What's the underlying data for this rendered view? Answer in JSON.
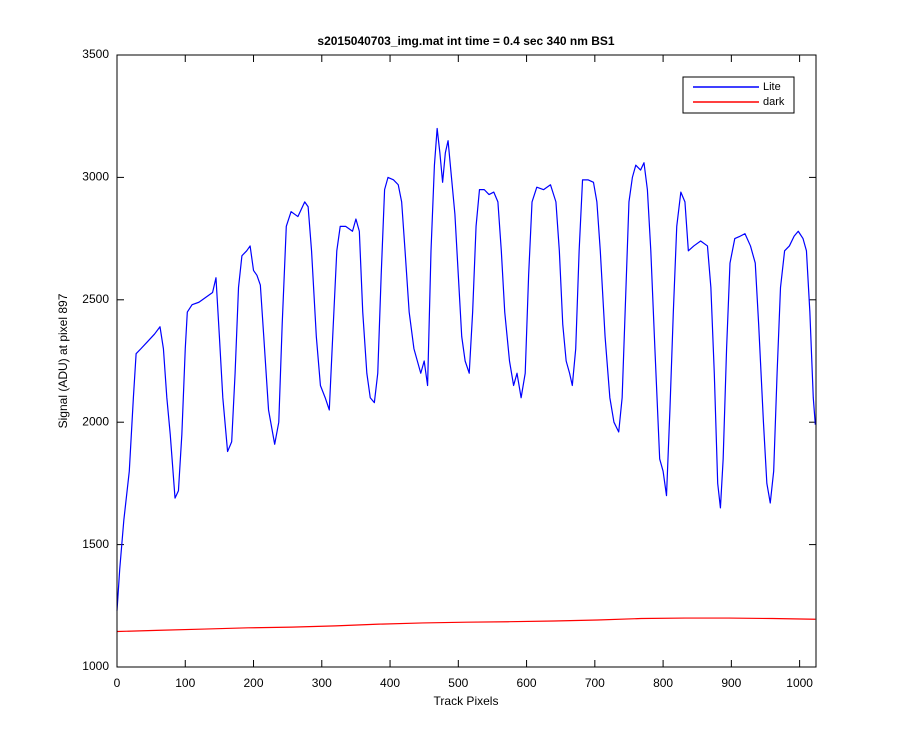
{
  "chart_data": {
    "type": "line",
    "title": "s2015040703_img.mat int time = 0.4 sec  340 nm BS1",
    "xlabel": "Track Pixels",
    "ylabel": "Signal (ADU) at pixel 897",
    "xlim": [
      0,
      1024
    ],
    "ylim": [
      1000,
      3500
    ],
    "xticks": [
      0,
      100,
      200,
      300,
      400,
      500,
      600,
      700,
      800,
      900,
      1000
    ],
    "yticks": [
      1000,
      1500,
      2000,
      2500,
      3000,
      3500
    ],
    "grid": false,
    "legend": "upper right",
    "series": [
      {
        "name": "Lite",
        "color": "#0000ff",
        "x": [
          0,
          4,
          10,
          18,
          24,
          28,
          35,
          45,
          55,
          63,
          68,
          73,
          78,
          85,
          90,
          95,
          100,
          103,
          110,
          120,
          130,
          140,
          145,
          150,
          155,
          162,
          168,
          173,
          178,
          183,
          190,
          195,
          200,
          205,
          210,
          215,
          222,
          231,
          237,
          242,
          248,
          255,
          265,
          275,
          280,
          285,
          292,
          298,
          305,
          311,
          316,
          322,
          327,
          335,
          345,
          350,
          355,
          360,
          366,
          371,
          377,
          382,
          387,
          392,
          397,
          405,
          412,
          417,
          422,
          428,
          435,
          440,
          445,
          450,
          455,
          460,
          465,
          469,
          473,
          477,
          481,
          485,
          490,
          495,
          500,
          505,
          510,
          516,
          521,
          526,
          531,
          538,
          545,
          552,
          558,
          563,
          568,
          575,
          581,
          586,
          592,
          598,
          603,
          608,
          615,
          625,
          635,
          643,
          648,
          653,
          658,
          663,
          667,
          672,
          677,
          682,
          690,
          698,
          703,
          708,
          715,
          722,
          728,
          735,
          740,
          745,
          750,
          755,
          760,
          767,
          772,
          777,
          782,
          788,
          795,
          800,
          805,
          810,
          815,
          820,
          826,
          832,
          837,
          845,
          855,
          865,
          870,
          875,
          880,
          884,
          888,
          893,
          898,
          905,
          913,
          920,
          928,
          935,
          940,
          947,
          952,
          957,
          962,
          967,
          972,
          978,
          985,
          992,
          998,
          1005,
          1010,
          1015,
          1020,
          1023
        ],
        "values": [
          1230,
          1400,
          1600,
          1800,
          2100,
          2280,
          2300,
          2330,
          2360,
          2390,
          2300,
          2100,
          1950,
          1690,
          1720,
          1950,
          2300,
          2450,
          2480,
          2490,
          2510,
          2530,
          2590,
          2350,
          2100,
          1880,
          1920,
          2200,
          2550,
          2680,
          2700,
          2720,
          2620,
          2600,
          2560,
          2350,
          2050,
          1910,
          2000,
          2400,
          2800,
          2860,
          2840,
          2900,
          2880,
          2700,
          2350,
          2150,
          2100,
          2050,
          2350,
          2700,
          2800,
          2800,
          2780,
          2830,
          2780,
          2450,
          2200,
          2100,
          2080,
          2200,
          2600,
          2950,
          3000,
          2990,
          2970,
          2900,
          2700,
          2450,
          2300,
          2250,
          2200,
          2250,
          2150,
          2700,
          3050,
          3200,
          3100,
          2980,
          3100,
          3150,
          3000,
          2850,
          2600,
          2350,
          2250,
          2200,
          2450,
          2800,
          2950,
          2950,
          2930,
          2940,
          2900,
          2700,
          2450,
          2250,
          2150,
          2200,
          2100,
          2200,
          2600,
          2900,
          2960,
          2950,
          2970,
          2900,
          2700,
          2400,
          2250,
          2200,
          2150,
          2300,
          2700,
          2990,
          2990,
          2980,
          2900,
          2700,
          2350,
          2100,
          2000,
          1960,
          2100,
          2500,
          2900,
          3000,
          3050,
          3030,
          3060,
          2950,
          2700,
          2300,
          1850,
          1800,
          1700,
          2050,
          2450,
          2800,
          2940,
          2900,
          2700,
          2720,
          2740,
          2720,
          2550,
          2200,
          1750,
          1650,
          1850,
          2300,
          2650,
          2750,
          2760,
          2770,
          2720,
          2650,
          2400,
          2000,
          1750,
          1670,
          1800,
          2200,
          2550,
          2700,
          2720,
          2760,
          2780,
          2750,
          2700,
          2450,
          2100,
          1990
        ]
      },
      {
        "name": "dark",
        "color": "#ff0000",
        "x": [
          0,
          64,
          128,
          192,
          256,
          320,
          384,
          448,
          512,
          576,
          640,
          704,
          768,
          832,
          896,
          960,
          1023
        ],
        "values": [
          1145,
          1150,
          1155,
          1160,
          1163,
          1168,
          1175,
          1180,
          1183,
          1185,
          1188,
          1192,
          1198,
          1200,
          1200,
          1198,
          1195
        ]
      }
    ]
  }
}
